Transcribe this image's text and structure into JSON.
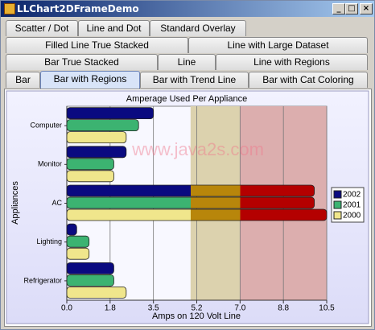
{
  "window": {
    "title": "LLChart2DFrameDemo"
  },
  "tabs": {
    "rows": [
      [
        "Scatter / Dot",
        "Line and Dot",
        "Standard Overlay"
      ],
      [
        "Filled Line True Stacked",
        "Line with Large Dataset"
      ],
      [
        "Bar True Stacked",
        "Line",
        "Line with Regions"
      ],
      [
        "Bar",
        "Bar with Regions",
        "Bar with Trend Line",
        "Bar with Cat Coloring"
      ]
    ]
  },
  "chart_data": {
    "type": "hbar",
    "title": "Amperage Used Per Appliance",
    "watermark": "www.java2s.com",
    "x_label": "Amps on 120 Volt Line",
    "y_label": "Appliances",
    "categories": [
      "Computer",
      "Monitor",
      "AC",
      "Lighting",
      "Refrigerator"
    ],
    "series": [
      {
        "name": "2002",
        "color": "#0a0a80",
        "values": [
          3.5,
          2.4,
          10.0,
          0.4,
          1.9
        ]
      },
      {
        "name": "2001",
        "color": "#3cb371",
        "values": [
          2.9,
          1.9,
          10.0,
          0.9,
          1.9
        ]
      },
      {
        "name": "2000",
        "color": "#f0e68c",
        "values": [
          2.4,
          1.9,
          10.5,
          0.9,
          2.4
        ]
      }
    ],
    "regions": [
      {
        "from": 5,
        "to": 7,
        "color": "#dcd2ae",
        "bar_color": "#b8860b"
      },
      {
        "from": 7,
        "to": 10.5,
        "color": "#dcaeae",
        "bar_color": "#b40000"
      }
    ],
    "xlim": [
      0,
      10.5
    ],
    "xticks": [
      {
        "value": 0,
        "label": "0.0"
      },
      {
        "value": 1.75,
        "label": "1.8"
      },
      3.5,
      {
        "value": 5.25,
        "label": "5.2"
      },
      {
        "value": 7,
        "label": "7.0"
      },
      {
        "value": 8.75,
        "label": "8.8"
      },
      10.5
    ],
    "grid": true,
    "legend": "right"
  }
}
